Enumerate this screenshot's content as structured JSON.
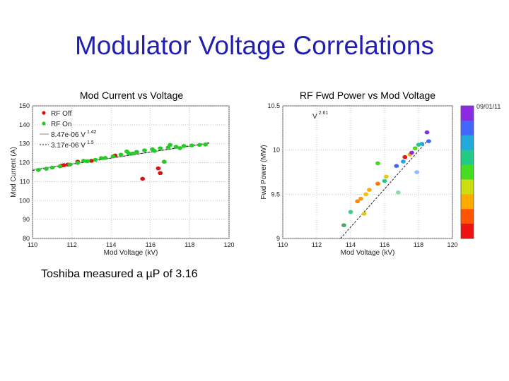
{
  "slide": {
    "title": "Modulator Voltage Correlations",
    "caption_prefix": "Toshiba measured a ",
    "caption_symbol": "µ",
    "caption_suffix": "P of 3.16"
  },
  "chart_data": [
    {
      "type": "scatter",
      "title": "Mod Current vs Voltage",
      "xlabel": "Mod Voltage (kV)",
      "ylabel": "Mod Current (A)",
      "xlim": [
        110,
        120
      ],
      "ylim": [
        80,
        150
      ],
      "xticks": [
        110,
        112,
        114,
        116,
        118,
        120
      ],
      "yticks": [
        80,
        90,
        100,
        110,
        120,
        130,
        140,
        150
      ],
      "grid": true,
      "legend_position": "top-left",
      "legend": [
        {
          "label": "RF Off",
          "color": "#dd1111",
          "marker": "dot"
        },
        {
          "label": "RF On",
          "color": "#22cc22",
          "marker": "dot"
        },
        {
          "label": "8.47e-06 V",
          "exponent": "1.42",
          "color": "#888888",
          "marker": "line"
        },
        {
          "label": "3.17e-06 V",
          "exponent": "1.5",
          "color": "#222222",
          "marker": "dashed"
        }
      ],
      "series": [
        {
          "name": "RF Off",
          "color": "#dd1111",
          "points": [
            [
              111.6,
              118.7
            ],
            [
              111.8,
              119.0
            ],
            [
              111.5,
              118.5
            ],
            [
              112.3,
              120.5
            ],
            [
              113.0,
              121.0
            ],
            [
              114.2,
              123.8
            ],
            [
              115.6,
              111.5
            ],
            [
              116.4,
              117.0
            ],
            [
              116.5,
              114.5
            ]
          ]
        },
        {
          "name": "RF On",
          "color": "#22cc22",
          "points": [
            [
              110.3,
              116.2
            ],
            [
              110.7,
              116.8
            ],
            [
              111.0,
              117.4
            ],
            [
              111.4,
              118.1
            ],
            [
              111.9,
              119.0
            ],
            [
              112.3,
              119.9
            ],
            [
              112.8,
              120.8
            ],
            [
              113.2,
              121.5
            ],
            [
              113.7,
              122.5
            ],
            [
              114.1,
              123.3
            ],
            [
              114.5,
              124.2
            ],
            [
              114.9,
              124.9
            ],
            [
              115.3,
              125.7
            ],
            [
              115.7,
              126.5
            ],
            [
              116.1,
              127.1
            ],
            [
              116.5,
              127.6
            ],
            [
              116.9,
              128.0
            ],
            [
              117.3,
              128.4
            ],
            [
              117.7,
              128.8
            ],
            [
              118.1,
              129.1
            ],
            [
              118.5,
              129.4
            ],
            [
              118.8,
              129.6
            ],
            [
              114.8,
              125.9
            ],
            [
              115.1,
              124.8
            ],
            [
              116.2,
              126.2
            ],
            [
              117.5,
              127.7
            ],
            [
              116.7,
              120.5
            ],
            [
              112.6,
              121.0
            ],
            [
              113.5,
              122.4
            ],
            [
              117.0,
              129.4
            ]
          ]
        }
      ],
      "fits": [
        {
          "name": "8.47e-06 V^1.42",
          "color": "#888888",
          "dashed": false,
          "points": [
            [
              110,
              116.3
            ],
            [
              119,
              130.2
            ]
          ]
        },
        {
          "name": "3.17e-06 V^1.5",
          "color": "#222222",
          "dashed": true,
          "points": [
            [
              110,
              115.9
            ],
            [
              119,
              130.5
            ]
          ]
        }
      ]
    },
    {
      "type": "scatter",
      "title": "RF Fwd Power vs Mod Voltage",
      "xlabel": "Mod Voltage (kV)",
      "ylabel": "Fwd Power (MW)",
      "xlim": [
        110,
        120
      ],
      "ylim": [
        9,
        10.5
      ],
      "xticks": [
        110,
        112,
        114,
        116,
        118,
        120
      ],
      "yticks": [
        9,
        9.5,
        10,
        10.5
      ],
      "yticklabels": [
        "9",
        "9.5",
        "10",
        "10.5"
      ],
      "grid": true,
      "annotation": {
        "text": "V",
        "exponent": "2.61"
      },
      "colorbar": {
        "label": "09/01/11",
        "colors": [
          "#8a2be2",
          "#4466ff",
          "#22aadd",
          "#22cc88",
          "#44dd22",
          "#ccdd11",
          "#ffaa00",
          "#ff5500",
          "#ee1111"
        ]
      },
      "series": [
        {
          "name": "RF On",
          "points": [
            [
              114.4,
              9.42,
              "#ff8800"
            ],
            [
              114.6,
              9.45,
              "#ff9900"
            ],
            [
              114.9,
              9.5,
              "#ffbb00"
            ],
            [
              115.1,
              9.55,
              "#ffaa00"
            ],
            [
              115.6,
              9.62,
              "#ff7700"
            ],
            [
              116.1,
              9.7,
              "#ddcc11"
            ],
            [
              116.7,
              9.82,
              "#4466ff"
            ],
            [
              117.1,
              9.87,
              "#22aadd"
            ],
            [
              117.5,
              9.95,
              "#ffaa00"
            ],
            [
              117.2,
              9.92,
              "#ee1111"
            ],
            [
              117.8,
              10.02,
              "#44dd22"
            ],
            [
              118.0,
              10.06,
              "#22cc88"
            ],
            [
              118.2,
              10.07,
              "#22aadd"
            ],
            [
              117.6,
              9.97,
              "#8a2be2"
            ],
            [
              118.5,
              10.2,
              "#8a2be2"
            ],
            [
              118.6,
              10.1,
              "#4466ff"
            ],
            [
              114.0,
              9.3,
              "#44cc88"
            ],
            [
              115.6,
              9.85,
              "#44dd22"
            ],
            [
              117.9,
              9.75,
              "#88bbff"
            ],
            [
              116.0,
              9.65,
              "#22cc88"
            ],
            [
              116.8,
              9.52,
              "#88ddaa"
            ],
            [
              113.6,
              9.15,
              "#44aa66"
            ],
            [
              114.8,
              9.28,
              "#ddcc11"
            ]
          ]
        }
      ],
      "fits": [
        {
          "name": "V^2.61",
          "color": "#222222",
          "dashed": true,
          "points": [
            [
              113.4,
              9.0
            ],
            [
              118.6,
              10.12
            ]
          ]
        }
      ]
    }
  ]
}
